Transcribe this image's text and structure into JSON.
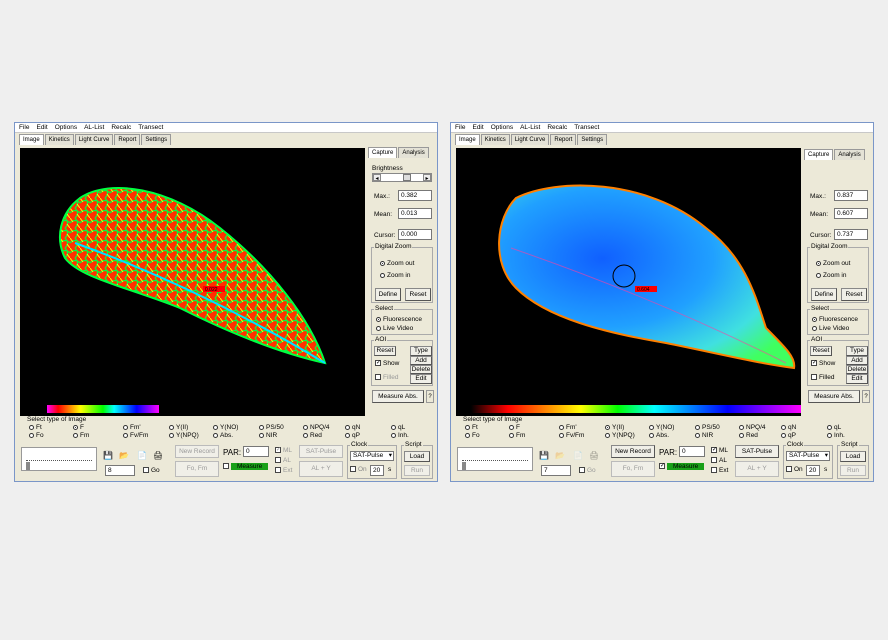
{
  "menu": [
    "File",
    "Edit",
    "Options",
    "AL-List",
    "Recalc",
    "Transect"
  ],
  "tabs": [
    "Image",
    "Kinetics",
    "Light Curve",
    "Report",
    "Settings"
  ],
  "right_tabs": [
    "Capture",
    "Analysis"
  ],
  "colors": {
    "accent_green": "#19a019",
    "window_bg": "#ece9d8"
  },
  "left": {
    "brightness_label": "Brightness",
    "max_label": "Max.:",
    "max": "0.382",
    "mean_label": "Mean:",
    "mean": "0.013",
    "cursor_label": "Cursor:",
    "cursor": "0.000",
    "digital_zoom": "Digital Zoom",
    "zoom_out": "Zoom out",
    "zoom_in": "Zoom in",
    "define": "Define",
    "reset": "Reset",
    "select": "Select",
    "fluorescence": "Fluorescence",
    "live_video": "Live Video",
    "aoi": "AOI",
    "aoi_reset": "Reset",
    "type": "Type",
    "add": "Add",
    "show": "Show",
    "delete": "Delete",
    "filled": "Filled",
    "edit": "Edit",
    "measure_abs": "Measure Abs.",
    "select_type": "Select type of Image",
    "selected_type": "F",
    "image_types": [
      [
        "Ft",
        "Fo"
      ],
      [
        "F",
        "Fm"
      ],
      [
        "Fm'",
        "Fv/Fm"
      ],
      [
        "Y(II)",
        "Y(NPQ)"
      ],
      [
        "Y(NO)",
        "Abs."
      ],
      [
        "PS/50",
        "NIR"
      ],
      [
        "NPQ/4",
        "Red"
      ],
      [
        "qN",
        "qP"
      ],
      [
        "qL",
        "Inh."
      ]
    ],
    "new_record": "New Record",
    "fo_fm": "Fo, Fm",
    "par_label": "PAR:",
    "par": "0",
    "measure": "Measure",
    "ml": "ML",
    "al": "AL",
    "ext": "Ext",
    "sat_pulse": "SAT-Pulse",
    "al_y": "AL + Y",
    "clock": "Clock",
    "clock_select": "SAT-Pulse",
    "on": "On",
    "interval": "20",
    "s": "s",
    "script": "Script",
    "load": "Load",
    "run": "Run",
    "counter": "8",
    "go": "Go",
    "aoi_value": "0.022"
  },
  "right": {
    "max_label": "Max.:",
    "max": "0.837",
    "mean_label": "Mean:",
    "mean": "0.607",
    "cursor_label": "Cursor:",
    "cursor": "0.737",
    "digital_zoom": "Digital Zoom",
    "zoom_out": "Zoom out",
    "zoom_in": "Zoom in",
    "define": "Define",
    "reset": "Reset",
    "select": "Select",
    "fluorescence": "Fluorescence",
    "live_video": "Live Video",
    "aoi": "AOI",
    "aoi_reset": "Reset",
    "type": "Type",
    "add": "Add",
    "show": "Show",
    "delete": "Delete",
    "filled": "Filled",
    "edit": "Edit",
    "measure_abs": "Measure Abs.",
    "select_type": "Select type of Image",
    "selected_type": "Y(II)",
    "image_types": [
      [
        "Ft",
        "Fo"
      ],
      [
        "F",
        "Fm"
      ],
      [
        "Fm'",
        "Fv/Fm"
      ],
      [
        "Y(II)",
        "Y(NPQ)"
      ],
      [
        "Y(NO)",
        "Abs."
      ],
      [
        "PS/50",
        "NIR"
      ],
      [
        "NPQ/4",
        "Red"
      ],
      [
        "qN",
        "qP"
      ],
      [
        "qL",
        "Inh."
      ]
    ],
    "new_record": "New Record",
    "fo_fm": "Fo, Fm",
    "par_label": "PAR:",
    "par": "0",
    "measure": "Measure",
    "ml": "ML",
    "al": "AL",
    "ext": "Ext",
    "sat_pulse": "SAT-Pulse",
    "al_y": "AL + Y",
    "clock": "Clock",
    "clock_select": "SAT-Pulse",
    "on": "On",
    "interval": "20",
    "s": "s",
    "script": "Script",
    "load": "Load",
    "run": "Run",
    "counter": "7",
    "go": "Go",
    "aoi_value": "0.604"
  }
}
